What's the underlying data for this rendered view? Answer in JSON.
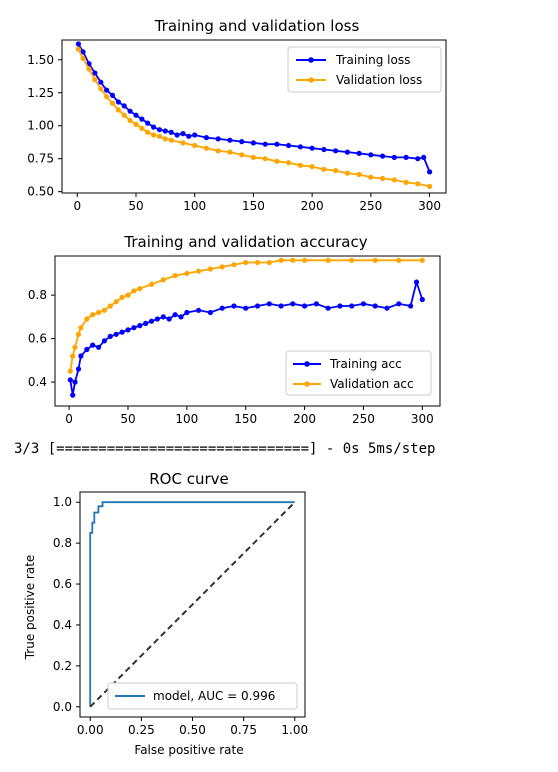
{
  "log_line": "3/3 [==============================] - 0s 5ms/step",
  "colors": {
    "training": "#0000ff",
    "validation": "#ffa500",
    "roc": "#1f77b4",
    "diagonal": "#333333"
  },
  "chart_data": [
    {
      "type": "line",
      "title": "Training and validation loss",
      "xlabel": "",
      "ylabel": "",
      "xlim": [
        -13,
        314
      ],
      "ylim": [
        0.49,
        1.65
      ],
      "xticks": [
        0,
        50,
        100,
        150,
        200,
        250,
        300
      ],
      "yticks": [
        0.5,
        0.75,
        1.0,
        1.25,
        1.5
      ],
      "ytick_labels": [
        "0.50",
        "0.75",
        "1.00",
        "1.25",
        "1.50"
      ],
      "grid": false,
      "legend_position": "top-right",
      "series": [
        {
          "name": "Training loss",
          "color": "#0000ff",
          "marker": "dot",
          "x": [
            1,
            5,
            10,
            15,
            20,
            25,
            30,
            35,
            40,
            45,
            50,
            55,
            60,
            65,
            70,
            75,
            80,
            85,
            90,
            95,
            100,
            110,
            120,
            130,
            140,
            150,
            160,
            170,
            180,
            190,
            200,
            210,
            220,
            230,
            240,
            250,
            260,
            270,
            280,
            290,
            295,
            300
          ],
          "y": [
            1.62,
            1.56,
            1.47,
            1.4,
            1.33,
            1.27,
            1.23,
            1.18,
            1.15,
            1.11,
            1.08,
            1.05,
            1.02,
            0.99,
            0.97,
            0.96,
            0.95,
            0.93,
            0.94,
            0.92,
            0.93,
            0.91,
            0.9,
            0.89,
            0.88,
            0.87,
            0.86,
            0.86,
            0.85,
            0.84,
            0.83,
            0.82,
            0.81,
            0.8,
            0.79,
            0.78,
            0.77,
            0.76,
            0.76,
            0.75,
            0.76,
            0.65
          ]
        },
        {
          "name": "Validation loss",
          "color": "#ffa500",
          "marker": "dot",
          "x": [
            1,
            5,
            10,
            15,
            20,
            25,
            30,
            35,
            40,
            45,
            50,
            55,
            60,
            65,
            70,
            75,
            80,
            90,
            100,
            110,
            120,
            130,
            140,
            150,
            160,
            170,
            180,
            190,
            200,
            210,
            220,
            230,
            240,
            250,
            260,
            270,
            280,
            290,
            300
          ],
          "y": [
            1.58,
            1.51,
            1.43,
            1.35,
            1.28,
            1.22,
            1.17,
            1.12,
            1.08,
            1.04,
            1.01,
            0.98,
            0.95,
            0.93,
            0.92,
            0.9,
            0.89,
            0.87,
            0.85,
            0.83,
            0.81,
            0.8,
            0.78,
            0.76,
            0.75,
            0.73,
            0.72,
            0.7,
            0.69,
            0.67,
            0.66,
            0.64,
            0.63,
            0.61,
            0.6,
            0.59,
            0.57,
            0.56,
            0.54
          ]
        }
      ]
    },
    {
      "type": "line",
      "title": "Training and validation accuracy",
      "xlabel": "",
      "ylabel": "",
      "xlim": [
        -12,
        315
      ],
      "ylim": [
        0.29,
        0.98
      ],
      "xticks": [
        0,
        50,
        100,
        150,
        200,
        250,
        300
      ],
      "yticks": [
        0.4,
        0.6,
        0.8
      ],
      "ytick_labels": [
        "0.4",
        "0.6",
        "0.8"
      ],
      "grid": false,
      "legend_position": "bottom-right",
      "series": [
        {
          "name": "Training acc",
          "color": "#0000ff",
          "marker": "dot",
          "x": [
            1,
            3,
            5,
            8,
            10,
            15,
            20,
            25,
            30,
            35,
            40,
            45,
            50,
            55,
            60,
            65,
            70,
            75,
            80,
            85,
            90,
            95,
            100,
            110,
            120,
            130,
            140,
            150,
            160,
            170,
            180,
            190,
            200,
            210,
            220,
            230,
            240,
            250,
            260,
            270,
            280,
            290,
            295,
            300
          ],
          "y": [
            0.41,
            0.34,
            0.4,
            0.46,
            0.52,
            0.55,
            0.57,
            0.56,
            0.59,
            0.61,
            0.62,
            0.63,
            0.64,
            0.65,
            0.66,
            0.67,
            0.68,
            0.69,
            0.7,
            0.69,
            0.71,
            0.7,
            0.72,
            0.73,
            0.72,
            0.74,
            0.75,
            0.74,
            0.75,
            0.76,
            0.75,
            0.76,
            0.75,
            0.76,
            0.74,
            0.75,
            0.75,
            0.76,
            0.75,
            0.74,
            0.76,
            0.75,
            0.86,
            0.78
          ]
        },
        {
          "name": "Validation acc",
          "color": "#ffa500",
          "marker": "dot",
          "x": [
            1,
            3,
            5,
            8,
            10,
            15,
            20,
            25,
            30,
            35,
            40,
            45,
            50,
            55,
            60,
            70,
            80,
            90,
            100,
            110,
            120,
            130,
            140,
            150,
            160,
            170,
            180,
            190,
            200,
            220,
            240,
            260,
            280,
            300
          ],
          "y": [
            0.45,
            0.52,
            0.56,
            0.62,
            0.65,
            0.69,
            0.71,
            0.72,
            0.73,
            0.75,
            0.77,
            0.79,
            0.8,
            0.82,
            0.83,
            0.85,
            0.87,
            0.89,
            0.9,
            0.91,
            0.92,
            0.93,
            0.94,
            0.95,
            0.95,
            0.95,
            0.96,
            0.96,
            0.96,
            0.96,
            0.96,
            0.96,
            0.96,
            0.96
          ]
        }
      ]
    },
    {
      "type": "line",
      "title": "ROC curve",
      "xlabel": "False positive rate",
      "ylabel": "True positive rate",
      "xlim": [
        -0.05,
        1.05
      ],
      "ylim": [
        -0.05,
        1.05
      ],
      "xticks": [
        0.0,
        0.25,
        0.5,
        0.75,
        1.0
      ],
      "xtick_labels": [
        "0.00",
        "0.25",
        "0.50",
        "0.75",
        "1.00"
      ],
      "yticks": [
        0.0,
        0.2,
        0.4,
        0.6,
        0.8,
        1.0
      ],
      "ytick_labels": [
        "0.0",
        "0.2",
        "0.4",
        "0.6",
        "0.8",
        "1.0"
      ],
      "grid": false,
      "legend_position": "lower-right",
      "series": [
        {
          "name": "model, AUC = 0.996",
          "color": "#1f77b4",
          "style": "step",
          "x": [
            0.0,
            0.0,
            0.01,
            0.01,
            0.02,
            0.02,
            0.04,
            0.04,
            0.06,
            0.06,
            1.0
          ],
          "y": [
            0.0,
            0.85,
            0.85,
            0.9,
            0.9,
            0.95,
            0.95,
            0.98,
            0.98,
            1.0,
            1.0
          ]
        },
        {
          "name": "",
          "color": "#333333",
          "style": "dashed",
          "x": [
            0,
            1
          ],
          "y": [
            0,
            1
          ]
        }
      ]
    }
  ]
}
